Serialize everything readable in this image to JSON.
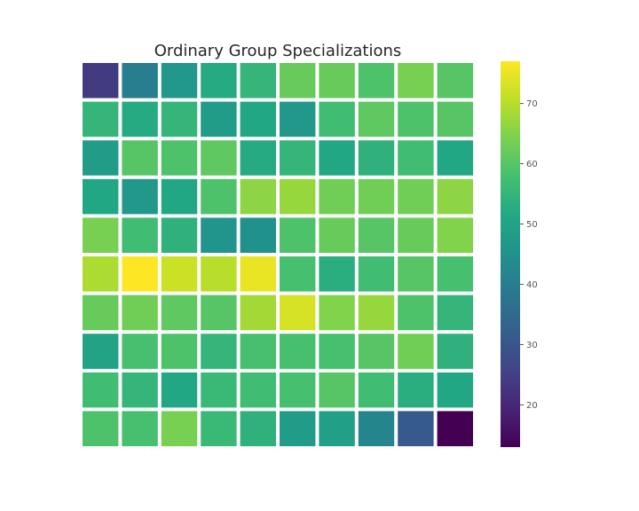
{
  "chart_data": {
    "type": "heatmap",
    "title": "Ordinary Group Specializations",
    "xlabel": "",
    "ylabel": "",
    "colormap": "viridis",
    "vmin": 13,
    "vmax": 77,
    "colorbar_ticks": [
      20,
      30,
      40,
      50,
      60,
      70
    ],
    "cell_separator_color": "#ffffff",
    "values": [
      [
        24,
        40,
        47,
        52,
        55,
        62,
        62,
        59,
        64,
        60
      ],
      [
        55,
        52,
        55,
        48,
        51,
        47,
        57,
        61,
        59,
        60
      ],
      [
        48,
        60,
        59,
        61,
        52,
        55,
        51,
        54,
        57,
        51
      ],
      [
        51,
        47,
        51,
        59,
        66,
        67,
        63,
        63,
        63,
        66
      ],
      [
        64,
        57,
        54,
        46,
        45,
        59,
        62,
        60,
        62,
        65
      ],
      [
        69,
        77,
        72,
        70,
        75,
        58,
        53,
        57,
        60,
        58
      ],
      [
        62,
        63,
        61,
        60,
        68,
        73,
        65,
        67,
        59,
        55
      ],
      [
        50,
        58,
        59,
        55,
        58,
        58,
        58,
        60,
        63,
        54
      ],
      [
        57,
        55,
        51,
        56,
        57,
        58,
        60,
        57,
        53,
        51
      ],
      [
        59,
        58,
        64,
        56,
        54,
        48,
        49,
        42,
        31,
        13
      ]
    ]
  }
}
